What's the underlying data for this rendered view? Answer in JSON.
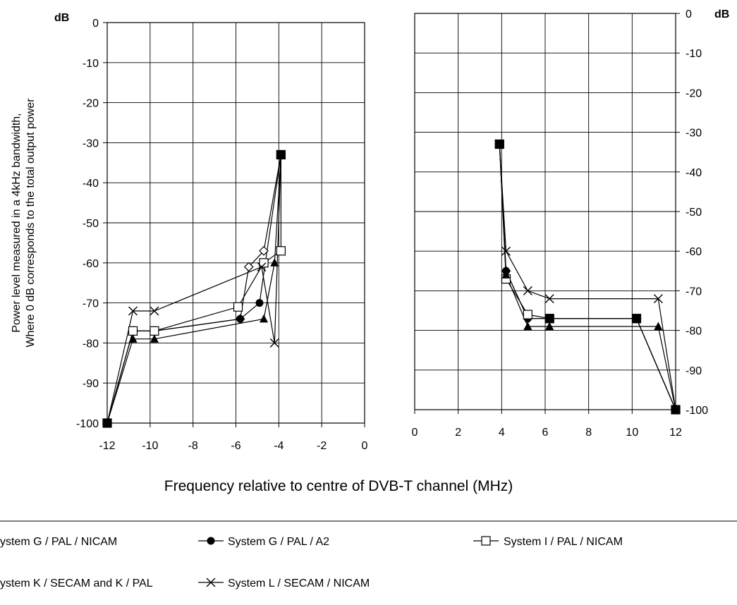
{
  "chart_data": {
    "type": "line",
    "xlabel": "Frequency relative to centre of DVB-T channel (MHz)",
    "ylabel": [
      "Power level measured in a 4kHz bandwidth,",
      "Where 0 dB corresponds to the total output power"
    ],
    "unit": "dB",
    "grid": true,
    "legend_position": "bottom",
    "panels": [
      {
        "name": "lower",
        "xlim": [
          -12,
          0
        ],
        "ylim": [
          -100,
          0
        ],
        "xticks": [
          "-12",
          "-10",
          "-8",
          "-6",
          "-4",
          "-2",
          "0"
        ],
        "xtick_values": [
          -12,
          -10,
          -8,
          -6,
          -4,
          -2,
          0
        ],
        "yticks": [
          "0",
          "-10",
          "-20",
          "-30",
          "-40",
          "-50",
          "-60",
          "-70",
          "-80",
          "-90",
          "-100"
        ],
        "ytick_values": [
          0,
          -10,
          -20,
          -30,
          -40,
          -50,
          -60,
          -70,
          -80,
          -90,
          -100
        ],
        "series": [
          {
            "name": "System G / PAL / NICAM",
            "marker": "diamond",
            "points": [
              [
                -12,
                -100
              ],
              [
                -10.8,
                -77
              ],
              [
                -9.8,
                -77
              ],
              [
                -5.8,
                -74
              ],
              [
                -5.4,
                -61
              ],
              [
                -4.7,
                -57
              ],
              [
                -3.9,
                -33
              ]
            ]
          },
          {
            "name": "System G / PAL / A2",
            "marker": "circle",
            "points": [
              [
                -12,
                -100
              ],
              [
                -10.8,
                -77
              ],
              [
                -9.8,
                -77
              ],
              [
                -5.8,
                -74
              ],
              [
                -4.9,
                -70
              ],
              [
                -3.9,
                -33
              ]
            ]
          },
          {
            "name": "System I / PAL / NICAM",
            "marker": "square-open",
            "points": [
              [
                -12,
                -100
              ],
              [
                -10.8,
                -77
              ],
              [
                -9.8,
                -77
              ],
              [
                -5.9,
                -71
              ],
              [
                -4.7,
                -60
              ],
              [
                -3.9,
                -57
              ],
              [
                -3.9,
                -33
              ]
            ]
          },
          {
            "name": "System K / SECAM and K / PAL",
            "marker": "triangle",
            "points": [
              [
                -12,
                -100
              ],
              [
                -10.8,
                -79
              ],
              [
                -9.8,
                -79
              ],
              [
                -4.7,
                -74
              ],
              [
                -4.2,
                -60
              ],
              [
                -3.9,
                -33
              ]
            ]
          },
          {
            "name": "System L / SECAM / NICAM",
            "marker": "x",
            "points": [
              [
                -12,
                -100
              ],
              [
                -10.8,
                -72
              ],
              [
                -9.8,
                -72
              ],
              [
                -4.8,
                -61
              ],
              [
                -4.2,
                -80
              ],
              [
                -3.9,
                -33
              ]
            ]
          }
        ]
      },
      {
        "name": "upper",
        "xlim": [
          0,
          12
        ],
        "ylim": [
          -100,
          0
        ],
        "xticks": [
          "0",
          "2",
          "4",
          "6",
          "8",
          "10",
          "12"
        ],
        "xtick_values": [
          0,
          2,
          4,
          6,
          8,
          10,
          12
        ],
        "yticks": [
          "0",
          "-10",
          "-20",
          "-30",
          "-40",
          "-50",
          "-60",
          "-70",
          "-80",
          "-90",
          "-100"
        ],
        "ytick_values": [
          0,
          -10,
          -20,
          -30,
          -40,
          -50,
          -60,
          -70,
          -80,
          -90,
          -100
        ],
        "series": [
          {
            "name": "System G / PAL / NICAM",
            "marker": "diamond",
            "points": [
              [
                3.9,
                -33
              ],
              [
                4.2,
                -65
              ],
              [
                5.2,
                -77
              ],
              [
                6.2,
                -77
              ],
              [
                10.2,
                -77
              ],
              [
                12,
                -100
              ]
            ]
          },
          {
            "name": "System G / PAL / A2",
            "marker": "circle",
            "points": [
              [
                3.9,
                -33
              ],
              [
                4.2,
                -65
              ],
              [
                5.2,
                -77
              ],
              [
                6.2,
                -77
              ],
              [
                10.2,
                -77
              ],
              [
                12,
                -100
              ]
            ]
          },
          {
            "name": "System I / PAL / NICAM",
            "marker": "square-open",
            "points": [
              [
                3.9,
                -33
              ],
              [
                4.2,
                -67
              ],
              [
                5.2,
                -76
              ],
              [
                6.2,
                -77
              ],
              [
                10.2,
                -77
              ],
              [
                12,
                -100
              ]
            ]
          },
          {
            "name": "System K / SECAM and K / PAL",
            "marker": "triangle",
            "points": [
              [
                3.9,
                -33
              ],
              [
                4.2,
                -66
              ],
              [
                5.2,
                -79
              ],
              [
                6.2,
                -79
              ],
              [
                11.2,
                -79
              ],
              [
                12,
                -100
              ]
            ]
          },
          {
            "name": "System L / SECAM / NICAM",
            "marker": "x",
            "points": [
              [
                3.9,
                -33
              ],
              [
                4.2,
                -60
              ],
              [
                5.2,
                -70
              ],
              [
                6.2,
                -72
              ],
              [
                11.2,
                -72
              ],
              [
                12,
                -100
              ]
            ]
          }
        ],
        "overlay_markers": [
          {
            "marker": "square-filled",
            "points": [
              [
                3.9,
                -33
              ],
              [
                6.2,
                -77
              ],
              [
                10.2,
                -77
              ],
              [
                12,
                -100
              ]
            ]
          }
        ]
      }
    ],
    "lower_overlay_markers": [
      {
        "marker": "square-filled",
        "points": [
          [
            -12,
            -100
          ],
          [
            -3.9,
            -33
          ]
        ]
      }
    ],
    "legend": [
      {
        "label": "ystem G / PAL / NICAM",
        "marker": "diamond",
        "position": "row-1-col-1"
      },
      {
        "label": "System G / PAL / A2",
        "marker": "circle",
        "position": "row-1-col-2"
      },
      {
        "label": "System I / PAL / NICAM",
        "marker": "square-open",
        "position": "row-1-col-3"
      },
      {
        "label": "ystem K / SECAM and K / PAL",
        "marker": "triangle",
        "position": "row-2-col-1"
      },
      {
        "label": "System L / SECAM / NICAM",
        "marker": "x",
        "position": "row-2-col-2"
      }
    ]
  }
}
